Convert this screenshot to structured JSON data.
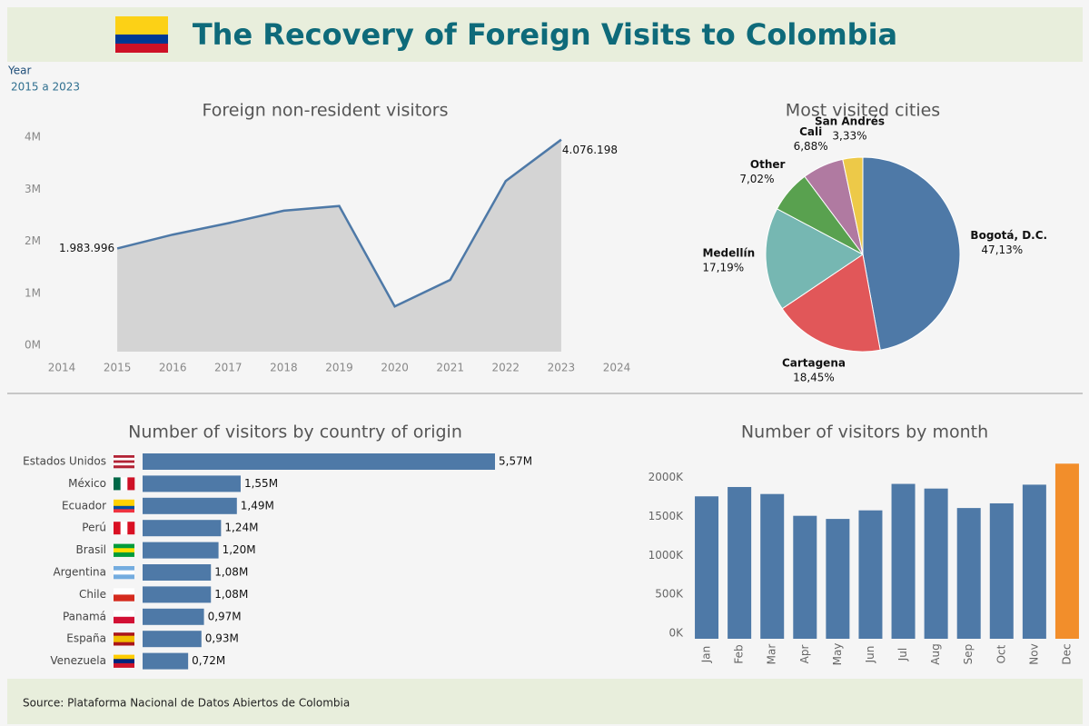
{
  "header": {
    "title": "The Recovery of Foreign Visits to Colombia"
  },
  "filter": {
    "label": "Year",
    "value": "2015 a 2023"
  },
  "footer": {
    "source": "Source: Plataforma Nacional de Datos Abiertos de Colombia"
  },
  "chart_data": [
    {
      "type": "area",
      "title": "Foreign non-resident visitors",
      "x": [
        2015,
        2016,
        2017,
        2018,
        2019,
        2020,
        2021,
        2022,
        2023
      ],
      "values": [
        1983996,
        2250000,
        2470000,
        2710000,
        2800000,
        870000,
        1380000,
        3280000,
        4076198
      ],
      "value_labels": [
        "1.983.996",
        null,
        null,
        null,
        null,
        null,
        null,
        null,
        "4.076.198"
      ],
      "color": "#4e79a7",
      "fill": "#d4d4d4",
      "xlim": [
        2014,
        2024
      ],
      "xticks": [
        2014,
        2015,
        2016,
        2017,
        2018,
        2019,
        2020,
        2021,
        2022,
        2023,
        2024
      ],
      "ylim": [
        0,
        4200000
      ],
      "yticks": [
        {
          "value": 0,
          "label": "0M"
        },
        {
          "value": 1000000,
          "label": "1M"
        },
        {
          "value": 2000000,
          "label": "2M"
        },
        {
          "value": 3000000,
          "label": "3M"
        },
        {
          "value": 4000000,
          "label": "4M"
        }
      ]
    },
    {
      "type": "pie",
      "title": "Most visited cities",
      "categories": [
        "Bogotá, D.C.",
        "Cartagena",
        "Medellín",
        "Other",
        "Cali",
        "San Andrés"
      ],
      "values": [
        47.13,
        18.45,
        17.19,
        7.02,
        6.88,
        3.33
      ],
      "value_labels": [
        "47,13%",
        "18,45%",
        "17,19%",
        "7,02%",
        "6,88%",
        "3,33%"
      ],
      "colors": [
        "#4e79a7",
        "#e15759",
        "#76b7b2",
        "#59a14f",
        "#b07aa1",
        "#edc948"
      ]
    },
    {
      "type": "hbar",
      "title": "Number of visitors by country of origin",
      "categories": [
        "Estados Unidos",
        "México",
        "Ecuador",
        "Perú",
        "Brasil",
        "Argentina",
        "Chile",
        "Panamá",
        "España",
        "Venezuela"
      ],
      "values": [
        5.57,
        1.55,
        1.49,
        1.24,
        1.2,
        1.08,
        1.08,
        0.97,
        0.93,
        0.72
      ],
      "value_labels": [
        "5,57M",
        "1,55M",
        "1,49M",
        "1,24M",
        "1,20M",
        "1,08M",
        "1,08M",
        "0,97M",
        "0,93M",
        "0,72M"
      ],
      "color": "#4e79a7"
    },
    {
      "type": "bar",
      "title": "Number of visitors by month",
      "categories": [
        "Jan",
        "Feb",
        "Mar",
        "Apr",
        "May",
        "Jun",
        "Jul",
        "Aug",
        "Sep",
        "Oct",
        "Nov",
        "Dec"
      ],
      "values": [
        1830000,
        1950000,
        1860000,
        1580000,
        1540000,
        1650000,
        1990000,
        1930000,
        1680000,
        1740000,
        1980000,
        2250000
      ],
      "colors": [
        "#4e79a7",
        "#4e79a7",
        "#4e79a7",
        "#4e79a7",
        "#4e79a7",
        "#4e79a7",
        "#4e79a7",
        "#4e79a7",
        "#4e79a7",
        "#4e79a7",
        "#4e79a7",
        "#f28e2b"
      ],
      "ylim": [
        0,
        2300000
      ],
      "yticks": [
        {
          "value": 0,
          "label": "0K"
        },
        {
          "value": 500000,
          "label": "500K"
        },
        {
          "value": 1000000,
          "label": "1000K"
        },
        {
          "value": 1500000,
          "label": "1500K"
        },
        {
          "value": 2000000,
          "label": "2000K"
        }
      ]
    }
  ]
}
